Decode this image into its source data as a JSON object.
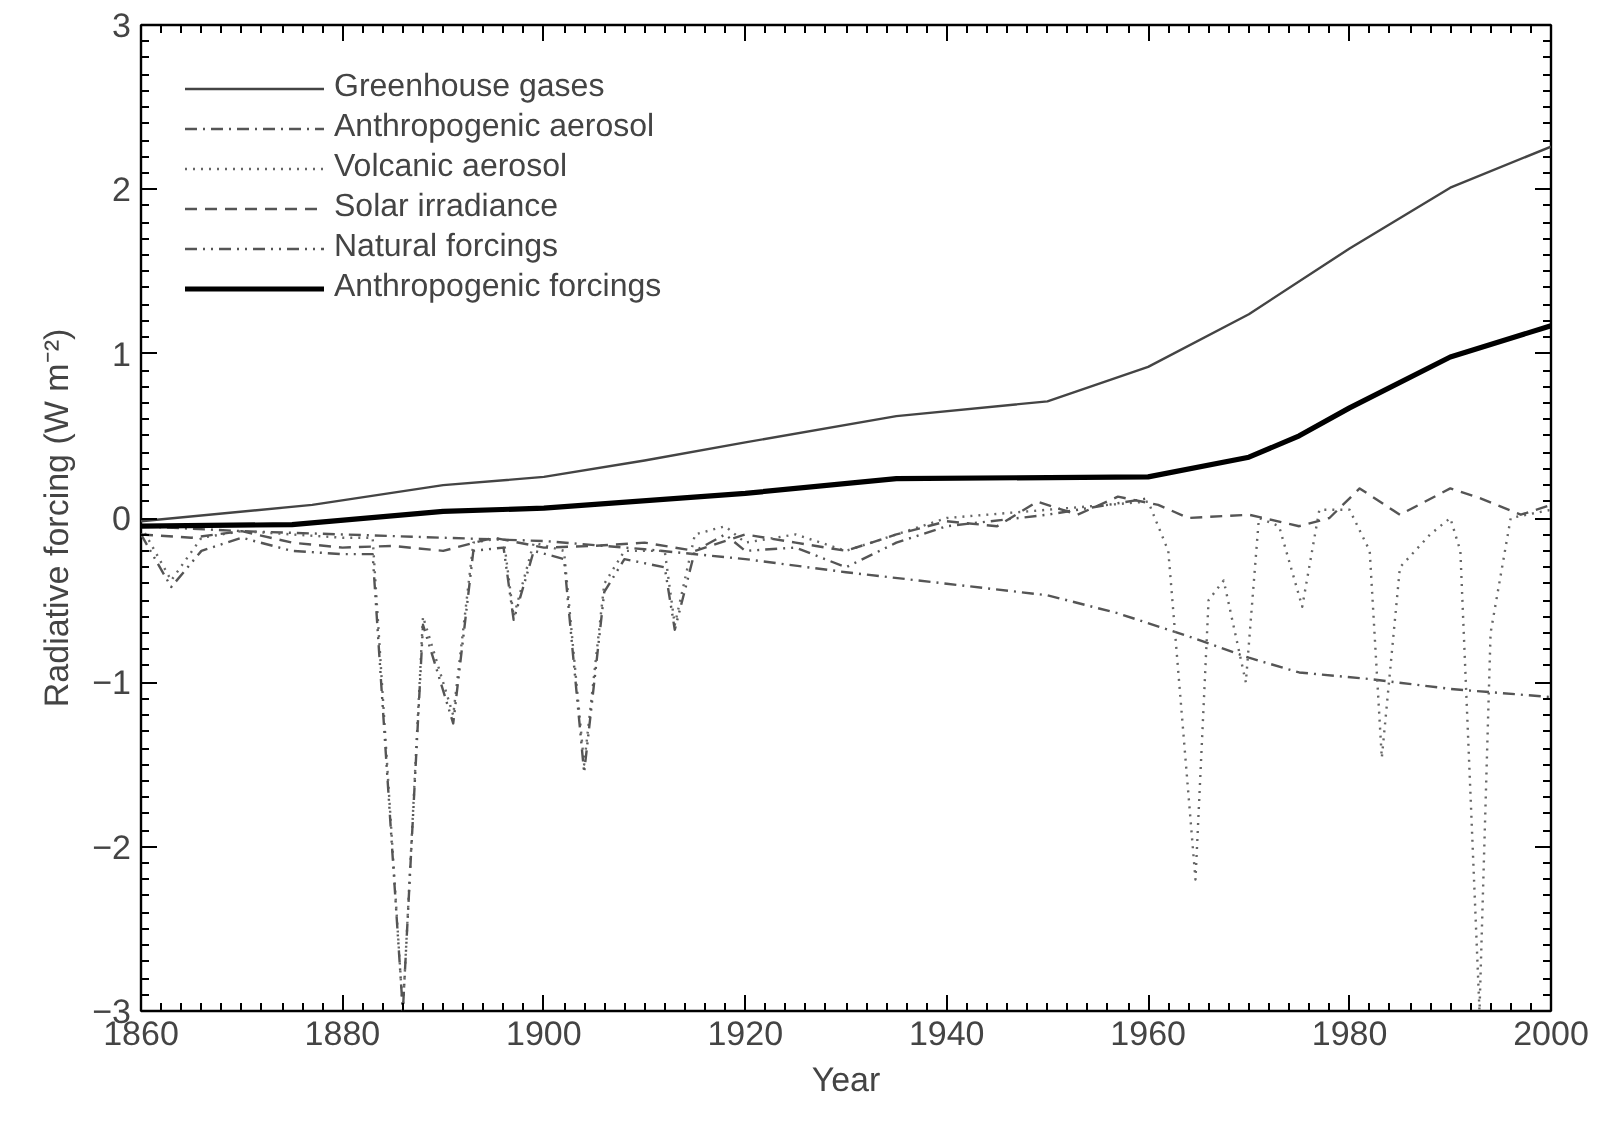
{
  "chart_data": {
    "type": "line",
    "xlabel": "Year",
    "ylabel": "Radiative forcing (W m⁻²)",
    "xlim": [
      1860,
      2000
    ],
    "xticks": [
      1860,
      1880,
      1900,
      1920,
      1940,
      1960,
      1980,
      2000
    ],
    "ylim": [
      -3,
      3
    ],
    "yticks": [
      -3,
      -2,
      -1,
      0,
      1,
      2,
      3
    ],
    "grid": false,
    "legend": "top left",
    "marker": "none",
    "series": [
      {
        "name": "Greenhouse gases",
        "color": "#444444",
        "line_style": "solid",
        "x": [
          1860,
          1877,
          1890,
          1900,
          1910,
          1920,
          1935,
          1950,
          1960,
          1970,
          1980,
          1990,
          2000
        ],
        "values": [
          -0.02,
          0.08,
          0.2,
          0.25,
          0.35,
          0.46,
          0.62,
          0.71,
          0.92,
          1.24,
          1.64,
          2.01,
          2.26
        ]
      },
      {
        "name": "Anthropogenic aerosol",
        "color": "#555555",
        "line_style": "dashdot",
        "x": [
          1860,
          1870,
          1880,
          1890,
          1900,
          1910,
          1920,
          1930,
          1940,
          1950,
          1957,
          1964,
          1970,
          1975,
          1982,
          1990,
          2000
        ],
        "values": [
          -0.05,
          -0.08,
          -0.1,
          -0.12,
          -0.14,
          -0.19,
          -0.25,
          -0.33,
          -0.4,
          -0.47,
          -0.58,
          -0.72,
          -0.85,
          -0.94,
          -0.98,
          -1.04,
          -1.09
        ]
      },
      {
        "name": "Volcanic aerosol",
        "color": "#666666",
        "line_style": "dotted",
        "x": [
          1860,
          1863,
          1866,
          1870,
          1875,
          1880,
          1883,
          1886,
          1888,
          1891,
          1893,
          1896,
          1897,
          1899,
          1902,
          1904,
          1906,
          1908,
          1912,
          1913,
          1915,
          1918,
          1920,
          1925,
          1930,
          1935,
          1940,
          1950,
          1960,
          1962,
          1964.7,
          1966,
          1967.5,
          1969.7,
          1971,
          1973,
          1975.3,
          1977,
          1980,
          1982,
          1983.2,
          1985,
          1988,
          1990,
          1991,
          1992.9,
          1994,
          1996,
          2000
        ],
        "values": [
          -0.05,
          -0.38,
          -0.12,
          -0.08,
          -0.1,
          -0.12,
          -0.12,
          -3.0,
          -0.6,
          -1.2,
          -0.15,
          -0.12,
          -0.6,
          -0.15,
          -0.2,
          -1.5,
          -0.4,
          -0.2,
          -0.2,
          -0.65,
          -0.1,
          -0.05,
          -0.15,
          -0.1,
          -0.2,
          -0.1,
          0.0,
          0.05,
          0.1,
          -0.2,
          -2.2,
          -0.5,
          -0.38,
          -1.0,
          0.0,
          -0.05,
          -0.54,
          0.05,
          0.05,
          -0.2,
          -1.46,
          -0.3,
          -0.1,
          0.0,
          -0.2,
          -3.0,
          -0.7,
          0.0,
          0.05
        ]
      },
      {
        "name": "Solar irradiance",
        "color": "#555555",
        "line_style": "dashed",
        "x": [
          1860,
          1865,
          1870,
          1875,
          1880,
          1885,
          1890,
          1895,
          1900,
          1905,
          1910,
          1915,
          1920,
          1925,
          1930,
          1935,
          1940,
          1945,
          1949,
          1953,
          1957,
          1961,
          1964,
          1970,
          1975,
          1978,
          1981,
          1985,
          1990,
          1993,
          1997,
          2000
        ],
        "values": [
          -0.1,
          -0.12,
          -0.08,
          -0.15,
          -0.18,
          -0.17,
          -0.2,
          -0.12,
          -0.18,
          -0.17,
          -0.15,
          -0.2,
          -0.1,
          -0.15,
          -0.2,
          -0.1,
          -0.02,
          -0.05,
          0.1,
          0.02,
          0.13,
          0.08,
          0.0,
          0.02,
          -0.05,
          0.0,
          0.18,
          0.02,
          0.18,
          0.12,
          0.02,
          0.08
        ]
      },
      {
        "name": "Natural forcings",
        "color": "#555555",
        "line_style": "dashdotdot",
        "x": [
          1860,
          1863,
          1866,
          1870,
          1875,
          1880,
          1883,
          1886,
          1888,
          1891,
          1893,
          1896,
          1897,
          1899,
          1902,
          1904,
          1906,
          1908,
          1912,
          1913,
          1915,
          1918,
          1920,
          1925,
          1930,
          1935,
          1940,
          1950,
          1960
        ],
        "values": [
          -0.1,
          -0.42,
          -0.2,
          -0.12,
          -0.2,
          -0.22,
          -0.22,
          -3.0,
          -0.65,
          -1.25,
          -0.2,
          -0.18,
          -0.62,
          -0.2,
          -0.25,
          -1.55,
          -0.45,
          -0.25,
          -0.3,
          -0.68,
          -0.2,
          -0.1,
          -0.2,
          -0.18,
          -0.3,
          -0.15,
          -0.05,
          0.02,
          0.12
        ]
      },
      {
        "name": "Anthropogenic forcings",
        "color": "#000000",
        "line_style": "solid",
        "x": [
          1860,
          1875,
          1890,
          1900,
          1920,
          1935,
          1960,
          1970,
          1975,
          1980,
          1990,
          2000
        ],
        "values": [
          -0.05,
          -0.04,
          0.04,
          0.06,
          0.15,
          0.24,
          0.25,
          0.37,
          0.5,
          0.67,
          0.98,
          1.17
        ]
      }
    ]
  }
}
